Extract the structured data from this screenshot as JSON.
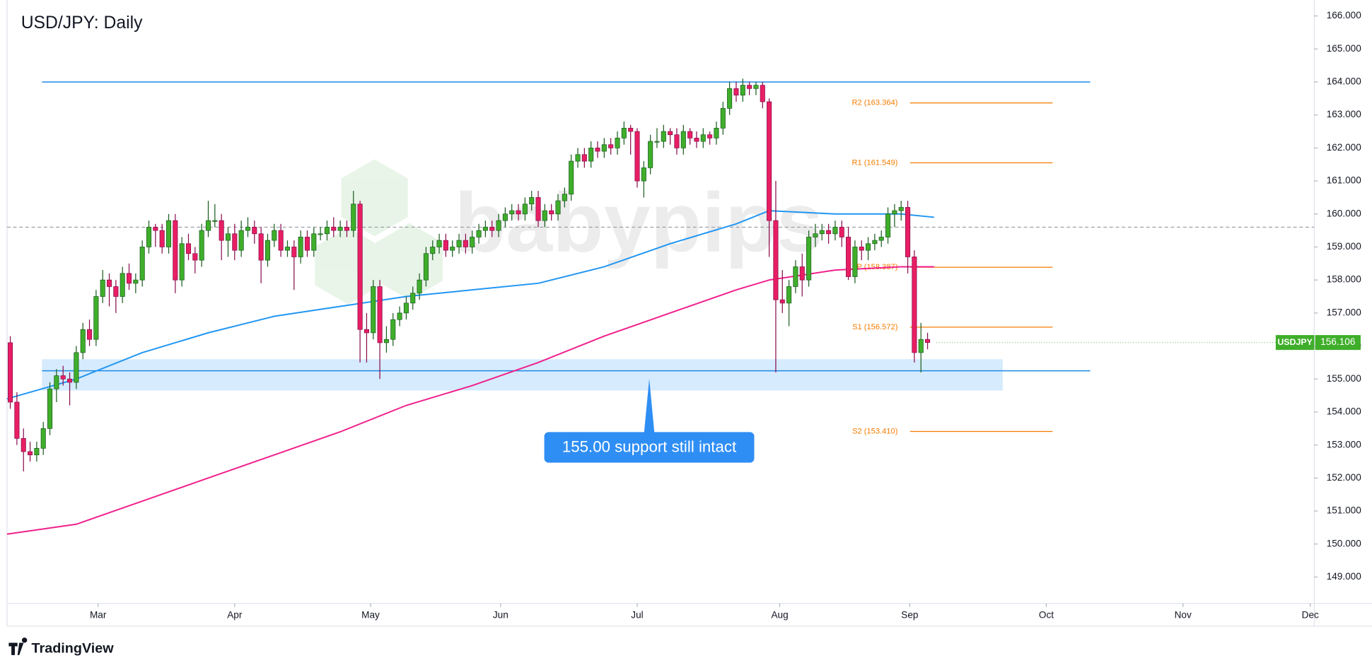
{
  "chart_data": {
    "type": "candlestick",
    "title": "USD/JPY: Daily",
    "watermark": "babypips",
    "brand": "TradingView",
    "ylim": [
      148.2,
      166.48
    ],
    "yticks": [
      {
        "value": 149,
        "label": "149.000"
      },
      {
        "value": 150,
        "label": "150.000"
      },
      {
        "value": 151,
        "label": "151.000"
      },
      {
        "value": 152,
        "label": "152.000"
      },
      {
        "value": 153,
        "label": "153.000"
      },
      {
        "value": 154,
        "label": "154.000"
      },
      {
        "value": 155,
        "label": "155.000"
      },
      {
        "value": 156,
        "label": "156.000"
      },
      {
        "value": 157,
        "label": "157.000"
      },
      {
        "value": 158,
        "label": "158.000"
      },
      {
        "value": 159,
        "label": "159.000"
      },
      {
        "value": 160,
        "label": "160.000"
      },
      {
        "value": 161,
        "label": "161.000"
      },
      {
        "value": 162,
        "label": "162.000"
      },
      {
        "value": 163,
        "label": "163.000"
      },
      {
        "value": 164,
        "label": "164.000"
      },
      {
        "value": 165,
        "label": "165.000"
      },
      {
        "value": 166,
        "label": "166.000"
      }
    ],
    "xlim": [
      -0.5,
      197.6
    ],
    "xticks": [
      {
        "value": 13.3,
        "label": "Mar"
      },
      {
        "value": 34,
        "label": "Apr"
      },
      {
        "value": 54.6,
        "label": "May"
      },
      {
        "value": 74.3,
        "label": "Jun"
      },
      {
        "value": 95,
        "label": "Jul"
      },
      {
        "value": 116.6,
        "label": "Aug"
      },
      {
        "value": 136.3,
        "label": "Sep"
      },
      {
        "value": 157,
        "label": "Oct"
      },
      {
        "value": 177.7,
        "label": "Nov"
      },
      {
        "value": 197,
        "label": "Dec"
      }
    ],
    "up_color": "#3fae2a",
    "down_color": "#e91e63",
    "ohlc": [
      [
        156.1,
        156.3,
        154.1,
        154.3
      ],
      [
        154.3,
        154.6,
        153.0,
        153.2
      ],
      [
        153.2,
        153.5,
        152.2,
        152.8
      ],
      [
        152.8,
        153.1,
        152.5,
        152.7
      ],
      [
        152.7,
        153.1,
        152.5,
        152.9
      ],
      [
        152.9,
        153.7,
        152.7,
        153.5
      ],
      [
        153.5,
        154.9,
        153.3,
        154.7
      ],
      [
        154.7,
        155.3,
        154.3,
        155.1
      ],
      [
        155.1,
        155.4,
        154.8,
        155.0
      ],
      [
        155.0,
        155.2,
        154.2,
        154.9
      ],
      [
        154.9,
        156.0,
        154.7,
        155.8
      ],
      [
        155.8,
        156.7,
        155.6,
        156.5
      ],
      [
        156.5,
        156.8,
        156.0,
        156.2
      ],
      [
        156.2,
        157.7,
        156.0,
        157.5
      ],
      [
        157.5,
        158.3,
        157.3,
        158.0
      ],
      [
        158.0,
        158.2,
        157.2,
        157.8
      ],
      [
        157.8,
        158.0,
        157.0,
        157.5
      ],
      [
        157.5,
        158.4,
        157.3,
        158.2
      ],
      [
        158.2,
        158.5,
        157.7,
        157.9
      ],
      [
        157.9,
        158.2,
        157.6,
        158.0
      ],
      [
        158.0,
        159.2,
        157.8,
        159.0
      ],
      [
        159.0,
        159.8,
        158.8,
        159.6
      ],
      [
        159.6,
        159.7,
        159.0,
        159.5
      ],
      [
        159.5,
        159.7,
        158.8,
        159.0
      ],
      [
        159.0,
        160.0,
        158.8,
        159.8
      ],
      [
        159.8,
        160.0,
        157.6,
        158.0
      ],
      [
        158.0,
        159.3,
        157.8,
        159.1
      ],
      [
        159.1,
        159.4,
        158.6,
        158.8
      ],
      [
        158.8,
        159.0,
        158.2,
        158.6
      ],
      [
        158.6,
        159.7,
        158.4,
        159.5
      ],
      [
        159.5,
        160.4,
        159.3,
        159.8
      ],
      [
        159.8,
        160.3,
        159.6,
        159.8
      ],
      [
        159.8,
        160.0,
        158.6,
        159.2
      ],
      [
        159.2,
        159.6,
        158.7,
        159.4
      ],
      [
        159.4,
        159.7,
        158.6,
        158.9
      ],
      [
        158.9,
        159.8,
        158.7,
        159.5
      ],
      [
        159.5,
        159.9,
        159.3,
        159.6
      ],
      [
        159.6,
        159.8,
        159.1,
        159.4
      ],
      [
        159.4,
        159.6,
        157.9,
        158.6
      ],
      [
        158.6,
        159.4,
        158.4,
        159.2
      ],
      [
        159.2,
        159.7,
        159.0,
        159.5
      ],
      [
        159.5,
        159.7,
        158.7,
        158.9
      ],
      [
        158.9,
        159.2,
        158.7,
        159.0
      ],
      [
        159.0,
        159.2,
        157.7,
        158.7
      ],
      [
        158.7,
        159.5,
        158.5,
        159.3
      ],
      [
        159.3,
        159.5,
        158.7,
        158.9
      ],
      [
        158.9,
        159.6,
        158.7,
        159.4
      ],
      [
        159.4,
        159.6,
        159.2,
        159.4
      ],
      [
        159.4,
        159.8,
        159.2,
        159.6
      ],
      [
        159.6,
        159.9,
        159.3,
        159.5
      ],
      [
        159.5,
        159.8,
        159.3,
        159.6
      ],
      [
        159.6,
        159.8,
        159.3,
        159.5
      ],
      [
        159.5,
        160.7,
        159.3,
        160.3
      ],
      [
        160.3,
        160.4,
        155.5,
        156.5
      ],
      [
        156.5,
        157.0,
        155.5,
        156.4
      ],
      [
        156.4,
        158.0,
        156.2,
        157.8
      ],
      [
        157.8,
        158.0,
        155.0,
        156.1
      ],
      [
        156.1,
        156.6,
        155.8,
        156.2
      ],
      [
        156.2,
        157.0,
        156.0,
        156.8
      ],
      [
        156.8,
        157.2,
        156.6,
        157.0
      ],
      [
        157.0,
        157.5,
        156.8,
        157.3
      ],
      [
        157.3,
        157.8,
        157.1,
        157.6
      ],
      [
        157.6,
        158.2,
        157.4,
        158.0
      ],
      [
        158.0,
        159.0,
        157.8,
        158.8
      ],
      [
        158.8,
        159.2,
        158.6,
        159.0
      ],
      [
        159.0,
        159.4,
        158.8,
        159.2
      ],
      [
        159.2,
        159.4,
        158.7,
        158.9
      ],
      [
        158.9,
        159.2,
        158.7,
        159.0
      ],
      [
        159.0,
        159.4,
        158.8,
        159.2
      ],
      [
        159.2,
        159.4,
        158.8,
        159.0
      ],
      [
        159.0,
        159.5,
        158.8,
        159.3
      ],
      [
        159.3,
        159.7,
        159.1,
        159.5
      ],
      [
        159.5,
        159.8,
        159.3,
        159.6
      ],
      [
        159.6,
        159.8,
        159.3,
        159.5
      ],
      [
        159.5,
        160.0,
        159.3,
        159.8
      ],
      [
        159.8,
        160.2,
        159.6,
        160.0
      ],
      [
        160.0,
        160.3,
        159.8,
        160.1
      ],
      [
        160.1,
        160.3,
        159.8,
        160.0
      ],
      [
        160.0,
        160.5,
        159.8,
        160.3
      ],
      [
        160.3,
        160.7,
        160.1,
        160.5
      ],
      [
        160.5,
        160.7,
        159.6,
        159.8
      ],
      [
        159.8,
        160.3,
        159.6,
        160.1
      ],
      [
        160.1,
        160.3,
        159.8,
        160.0
      ],
      [
        160.0,
        160.6,
        159.8,
        160.4
      ],
      [
        160.4,
        160.8,
        160.2,
        160.6
      ],
      [
        160.6,
        161.8,
        160.4,
        161.6
      ],
      [
        161.6,
        162.0,
        161.4,
        161.8
      ],
      [
        161.8,
        162.0,
        161.4,
        161.6
      ],
      [
        161.6,
        162.2,
        161.4,
        162.0
      ],
      [
        162.0,
        162.2,
        161.7,
        161.9
      ],
      [
        161.9,
        162.3,
        161.7,
        162.1
      ],
      [
        162.1,
        162.3,
        161.8,
        162.0
      ],
      [
        162.0,
        162.5,
        161.8,
        162.3
      ],
      [
        162.3,
        162.8,
        162.1,
        162.6
      ],
      [
        162.6,
        162.7,
        161.8,
        162.5
      ],
      [
        162.5,
        162.6,
        160.8,
        161.0
      ],
      [
        161.0,
        161.6,
        160.5,
        161.4
      ],
      [
        161.4,
        162.4,
        161.2,
        162.2
      ],
      [
        162.2,
        162.6,
        162.0,
        162.2
      ],
      [
        162.2,
        162.7,
        162.0,
        162.5
      ],
      [
        162.5,
        162.6,
        162.1,
        162.4
      ],
      [
        162.4,
        162.6,
        161.8,
        162.0
      ],
      [
        162.0,
        162.7,
        161.8,
        162.5
      ],
      [
        162.5,
        162.6,
        162.1,
        162.3
      ],
      [
        162.3,
        162.5,
        162.0,
        162.2
      ],
      [
        162.2,
        162.6,
        162.0,
        162.4
      ],
      [
        162.4,
        162.5,
        162.1,
        162.3
      ],
      [
        162.3,
        162.8,
        162.1,
        162.6
      ],
      [
        162.6,
        163.4,
        162.4,
        163.2
      ],
      [
        163.2,
        164.0,
        163.0,
        163.8
      ],
      [
        163.8,
        164.0,
        163.4,
        163.6
      ],
      [
        163.6,
        164.1,
        163.4,
        163.9
      ],
      [
        163.9,
        164.0,
        163.6,
        163.8
      ],
      [
        163.8,
        164.0,
        163.6,
        163.9
      ],
      [
        163.9,
        164.0,
        163.2,
        163.4
      ],
      [
        163.4,
        163.5,
        158.7,
        159.8
      ],
      [
        159.8,
        161.0,
        155.2,
        157.4
      ],
      [
        157.4,
        158.3,
        157.0,
        157.3
      ],
      [
        157.3,
        158.0,
        156.6,
        157.8
      ],
      [
        157.8,
        158.6,
        157.6,
        158.4
      ],
      [
        158.4,
        158.8,
        157.5,
        158.0
      ],
      [
        158.0,
        159.5,
        157.8,
        159.3
      ],
      [
        159.3,
        159.7,
        159.0,
        159.4
      ],
      [
        159.4,
        159.7,
        159.2,
        159.5
      ],
      [
        159.5,
        159.7,
        159.1,
        159.4
      ],
      [
        159.4,
        159.8,
        159.2,
        159.6
      ],
      [
        159.6,
        159.8,
        159.0,
        159.3
      ],
      [
        159.3,
        159.6,
        158.0,
        158.1
      ],
      [
        158.1,
        159.2,
        157.9,
        159.0
      ],
      [
        159.0,
        159.2,
        158.6,
        158.9
      ],
      [
        158.9,
        159.3,
        158.6,
        159.1
      ],
      [
        159.1,
        159.4,
        158.9,
        159.2
      ],
      [
        159.2,
        159.5,
        159.0,
        159.3
      ],
      [
        159.3,
        160.2,
        159.1,
        160.0
      ],
      [
        160.0,
        160.3,
        159.6,
        160.1
      ],
      [
        160.1,
        160.4,
        159.8,
        160.2
      ],
      [
        160.2,
        160.4,
        158.2,
        158.7
      ],
      [
        158.7,
        158.9,
        155.5,
        155.8
      ],
      [
        155.8,
        156.7,
        155.2,
        156.2
      ],
      [
        156.2,
        156.4,
        155.9,
        156.106
      ]
    ],
    "moving_averages": [
      {
        "color": "#2196f3",
        "x": [
          -0.5,
          10,
          20,
          30,
          40,
          50,
          60,
          70,
          80,
          90,
          100,
          110,
          115,
          125,
          135,
          140
        ],
        "values": [
          154.4,
          155.0,
          155.8,
          156.4,
          156.9,
          157.2,
          157.5,
          157.7,
          157.9,
          158.4,
          159.1,
          159.7,
          160.1,
          160.0,
          160.0,
          159.9
        ]
      },
      {
        "color": "#f0208c",
        "x": [
          -0.5,
          10,
          20,
          30,
          40,
          50,
          60,
          70,
          80,
          90,
          100,
          110,
          115,
          125,
          135,
          140
        ],
        "values": [
          150.3,
          150.6,
          151.3,
          152.0,
          152.7,
          153.4,
          154.2,
          154.8,
          155.5,
          156.3,
          157.0,
          157.7,
          158.0,
          158.3,
          158.4,
          158.4
        ]
      }
    ],
    "resistance": 164.0,
    "support": 155.25,
    "support_zone": [
      154.65,
      155.6
    ],
    "dashed_level": 159.6,
    "pivots": [
      {
        "value": 163.364,
        "label": "R2 (163.364)"
      },
      {
        "value": 161.549,
        "label": "R1 (161.549)"
      },
      {
        "value": 158.387,
        "label": "P (158.387)"
      },
      {
        "value": 156.572,
        "label": "S1 (156.572)"
      },
      {
        "value": 153.41,
        "label": "S2 (153.410)"
      }
    ],
    "pivot_color": "#f57c00",
    "annotation": "155.00 support still intact",
    "last_price": {
      "symbol": "USDJPY",
      "value": 156.106
    }
  }
}
